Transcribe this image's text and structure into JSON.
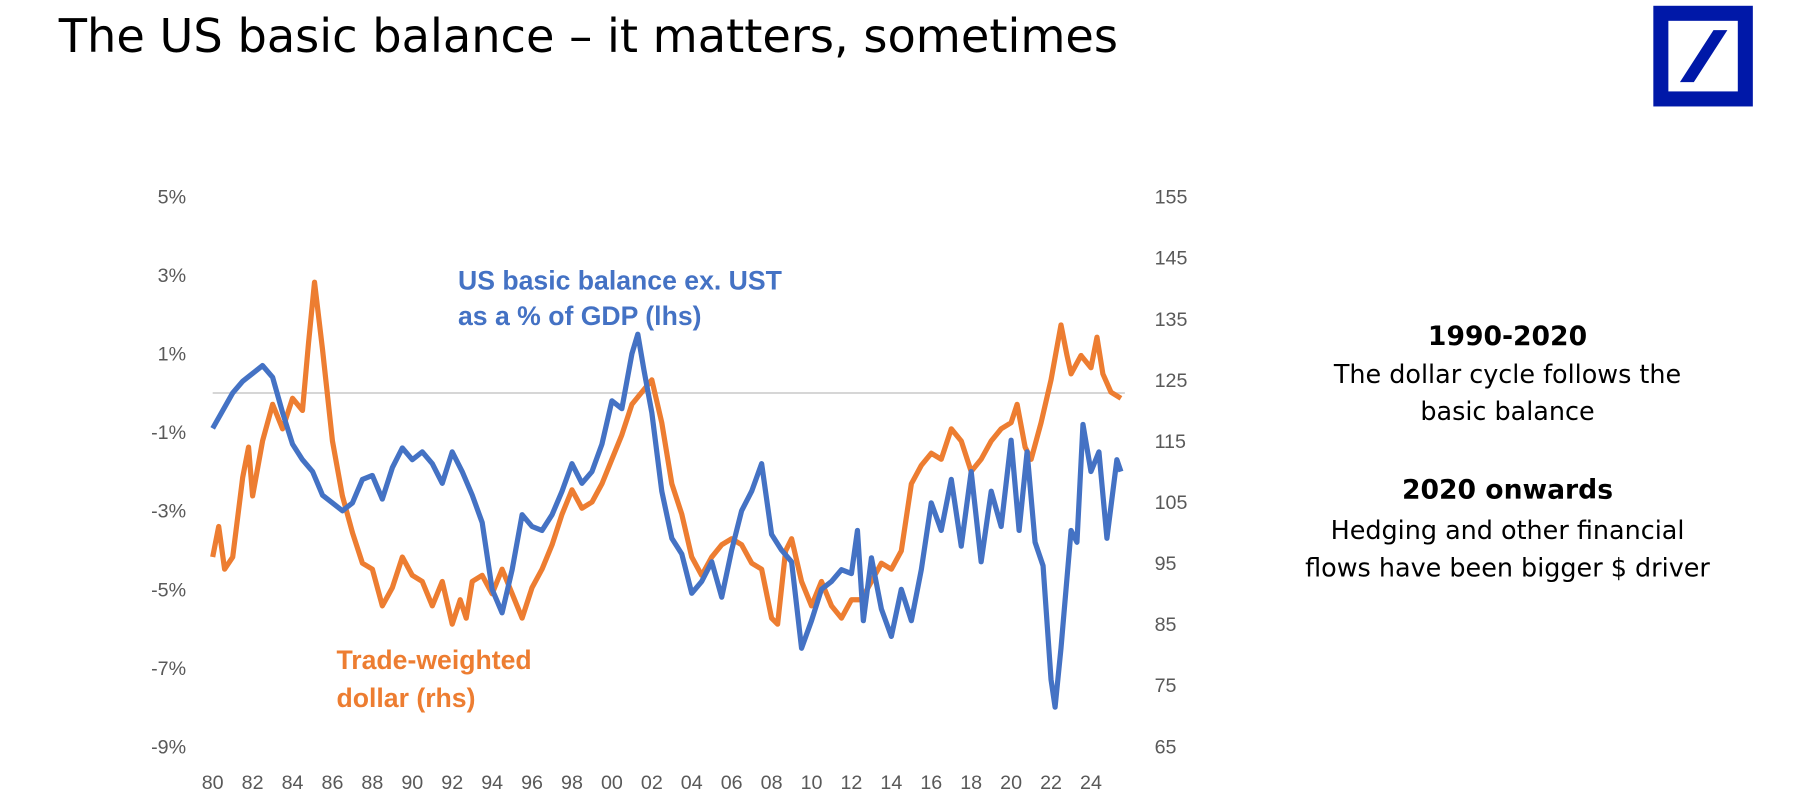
{
  "title": "The US basic balance – it matters, sometimes",
  "logo": {
    "name": "deutsche-bank-logo",
    "color": "#0018A8"
  },
  "annotations": {
    "period1_heading": "1990-2020",
    "period1_line1": "The dollar cycle follows the",
    "period1_line2": "basic balance",
    "period2_heading": "2020 onwards",
    "period2_line1": "Hedging and other financial",
    "period2_line2": "flows have been bigger $ driver"
  },
  "chart_data": {
    "type": "line",
    "title": "",
    "x_ticks": [
      "80",
      "82",
      "84",
      "86",
      "88",
      "90",
      "92",
      "94",
      "96",
      "98",
      "00",
      "02",
      "04",
      "06",
      "08",
      "10",
      "12",
      "14",
      "16",
      "18",
      "20",
      "22",
      "24"
    ],
    "xlim": [
      1980,
      2025.7
    ],
    "y_left": {
      "ticks": [
        "5%",
        "3%",
        "1%",
        "-1%",
        "-3%",
        "-5%",
        "-7%",
        "-9%"
      ],
      "lim": [
        -9,
        5
      ],
      "unit": "%"
    },
    "y_right": {
      "ticks": [
        "155",
        "145",
        "135",
        "125",
        "115",
        "105",
        "95",
        "85",
        "75",
        "65"
      ],
      "lim": [
        65,
        155
      ]
    },
    "zero_line": {
      "value": 0,
      "axis": "left",
      "color": "#d0d0d0"
    },
    "series": [
      {
        "label_line1": "US basic balance ex. UST",
        "label_line2": "as a % of GDP (lhs)",
        "axis": "left",
        "color": "#4472C4",
        "points": [
          [
            1980,
            -0.9
          ],
          [
            1981,
            0.0
          ],
          [
            1981.5,
            0.3
          ],
          [
            1982,
            0.5
          ],
          [
            1982.5,
            0.7
          ],
          [
            1983,
            0.4
          ],
          [
            1983.5,
            -0.5
          ],
          [
            1984,
            -1.3
          ],
          [
            1984.5,
            -1.7
          ],
          [
            1985,
            -2.0
          ],
          [
            1985.5,
            -2.6
          ],
          [
            1986,
            -2.8
          ],
          [
            1986.5,
            -3.0
          ],
          [
            1987,
            -2.8
          ],
          [
            1987.5,
            -2.2
          ],
          [
            1988,
            -2.1
          ],
          [
            1988.5,
            -2.7
          ],
          [
            1989,
            -1.9
          ],
          [
            1989.5,
            -1.4
          ],
          [
            1990,
            -1.7
          ],
          [
            1990.5,
            -1.5
          ],
          [
            1991,
            -1.8
          ],
          [
            1991.5,
            -2.3
          ],
          [
            1992,
            -1.5
          ],
          [
            1992.5,
            -2.0
          ],
          [
            1993,
            -2.6
          ],
          [
            1993.5,
            -3.3
          ],
          [
            1994,
            -5.0
          ],
          [
            1994.5,
            -5.6
          ],
          [
            1995,
            -4.5
          ],
          [
            1995.5,
            -3.1
          ],
          [
            1996,
            -3.4
          ],
          [
            1996.5,
            -3.5
          ],
          [
            1997,
            -3.1
          ],
          [
            1997.5,
            -2.5
          ],
          [
            1998,
            -1.8
          ],
          [
            1998.5,
            -2.3
          ],
          [
            1999,
            -2.0
          ],
          [
            1999.5,
            -1.3
          ],
          [
            2000,
            -0.2
          ],
          [
            2000.5,
            -0.4
          ],
          [
            2001,
            1.0
          ],
          [
            2001.3,
            1.5
          ],
          [
            2001.6,
            0.6
          ],
          [
            2002,
            -0.5
          ],
          [
            2002.5,
            -2.5
          ],
          [
            2003,
            -3.7
          ],
          [
            2003.5,
            -4.1
          ],
          [
            2004,
            -5.1
          ],
          [
            2004.5,
            -4.8
          ],
          [
            2005,
            -4.3
          ],
          [
            2005.5,
            -5.2
          ],
          [
            2006,
            -4.0
          ],
          [
            2006.5,
            -3.0
          ],
          [
            2007,
            -2.5
          ],
          [
            2007.5,
            -1.8
          ],
          [
            2008,
            -3.6
          ],
          [
            2008.5,
            -4.0
          ],
          [
            2009,
            -4.3
          ],
          [
            2009.5,
            -6.5
          ],
          [
            2010,
            -5.8
          ],
          [
            2010.5,
            -5.0
          ],
          [
            2011,
            -4.8
          ],
          [
            2011.5,
            -4.5
          ],
          [
            2012,
            -4.6
          ],
          [
            2012.3,
            -3.5
          ],
          [
            2012.6,
            -5.8
          ],
          [
            2013,
            -4.2
          ],
          [
            2013.5,
            -5.5
          ],
          [
            2014,
            -6.2
          ],
          [
            2014.5,
            -5.0
          ],
          [
            2015,
            -5.8
          ],
          [
            2015.5,
            -4.5
          ],
          [
            2016,
            -2.8
          ],
          [
            2016.5,
            -3.5
          ],
          [
            2017,
            -2.2
          ],
          [
            2017.5,
            -3.9
          ],
          [
            2018,
            -2.0
          ],
          [
            2018.5,
            -4.3
          ],
          [
            2019,
            -2.5
          ],
          [
            2019.5,
            -3.4
          ],
          [
            2020,
            -1.2
          ],
          [
            2020.4,
            -3.5
          ],
          [
            2020.8,
            -1.5
          ],
          [
            2021.2,
            -3.8
          ],
          [
            2021.6,
            -4.4
          ],
          [
            2022,
            -7.3
          ],
          [
            2022.2,
            -8.0
          ],
          [
            2022.5,
            -6.5
          ],
          [
            2023,
            -3.5
          ],
          [
            2023.3,
            -3.8
          ],
          [
            2023.6,
            -0.8
          ],
          [
            2024,
            -2.0
          ],
          [
            2024.4,
            -1.5
          ],
          [
            2024.8,
            -3.7
          ],
          [
            2025.3,
            -1.7
          ],
          [
            2025.5,
            -2.0
          ]
        ]
      },
      {
        "label_line1": "Trade-weighted",
        "label_line2": "dollar (rhs)",
        "axis": "right",
        "color": "#ED7D31",
        "points": [
          [
            1980,
            96
          ],
          [
            1980.3,
            101
          ],
          [
            1980.6,
            94
          ],
          [
            1981,
            96
          ],
          [
            1981.5,
            109
          ],
          [
            1981.8,
            114
          ],
          [
            1982,
            106
          ],
          [
            1982.5,
            115
          ],
          [
            1983,
            121
          ],
          [
            1983.5,
            117
          ],
          [
            1984,
            122
          ],
          [
            1984.5,
            120
          ],
          [
            1984.8,
            131
          ],
          [
            1985.1,
            141
          ],
          [
            1985.5,
            130
          ],
          [
            1986,
            115
          ],
          [
            1986.5,
            106
          ],
          [
            1987,
            100
          ],
          [
            1987.5,
            95
          ],
          [
            1988,
            94
          ],
          [
            1988.5,
            88
          ],
          [
            1989,
            91
          ],
          [
            1989.5,
            96
          ],
          [
            1990,
            93
          ],
          [
            1990.5,
            92
          ],
          [
            1991,
            88
          ],
          [
            1991.5,
            92
          ],
          [
            1992,
            85
          ],
          [
            1992.4,
            89
          ],
          [
            1992.7,
            86
          ],
          [
            1993,
            92
          ],
          [
            1993.5,
            93
          ],
          [
            1994,
            90
          ],
          [
            1994.5,
            94
          ],
          [
            1995,
            90
          ],
          [
            1995.5,
            86
          ],
          [
            1996,
            91
          ],
          [
            1996.5,
            94
          ],
          [
            1997,
            98
          ],
          [
            1997.5,
            103
          ],
          [
            1998,
            107
          ],
          [
            1998.5,
            104
          ],
          [
            1999,
            105
          ],
          [
            1999.5,
            108
          ],
          [
            2000,
            112
          ],
          [
            2000.5,
            116
          ],
          [
            2001,
            121
          ],
          [
            2001.5,
            123
          ],
          [
            2002,
            125
          ],
          [
            2002.5,
            118
          ],
          [
            2003,
            108
          ],
          [
            2003.5,
            103
          ],
          [
            2004,
            96
          ],
          [
            2004.5,
            93
          ],
          [
            2005,
            96
          ],
          [
            2005.5,
            98
          ],
          [
            2006,
            99
          ],
          [
            2006.5,
            98
          ],
          [
            2007,
            95
          ],
          [
            2007.5,
            94
          ],
          [
            2008,
            86
          ],
          [
            2008.3,
            85
          ],
          [
            2008.7,
            97
          ],
          [
            2009,
            99
          ],
          [
            2009.5,
            92
          ],
          [
            2010,
            88
          ],
          [
            2010.5,
            92
          ],
          [
            2011,
            88
          ],
          [
            2011.5,
            86
          ],
          [
            2012,
            89
          ],
          [
            2012.5,
            89
          ],
          [
            2013,
            92
          ],
          [
            2013.5,
            95
          ],
          [
            2014,
            94
          ],
          [
            2014.5,
            97
          ],
          [
            2015,
            108
          ],
          [
            2015.5,
            111
          ],
          [
            2016,
            113
          ],
          [
            2016.5,
            112
          ],
          [
            2017,
            117
          ],
          [
            2017.5,
            115
          ],
          [
            2018,
            110
          ],
          [
            2018.5,
            112
          ],
          [
            2019,
            115
          ],
          [
            2019.5,
            117
          ],
          [
            2020,
            118
          ],
          [
            2020.3,
            121
          ],
          [
            2020.7,
            114
          ],
          [
            2021,
            112
          ],
          [
            2021.5,
            118
          ],
          [
            2022,
            125
          ],
          [
            2022.5,
            134
          ],
          [
            2022.8,
            129
          ],
          [
            2023,
            126
          ],
          [
            2023.5,
            129
          ],
          [
            2024,
            127
          ],
          [
            2024.3,
            132
          ],
          [
            2024.6,
            126
          ],
          [
            2025,
            123
          ],
          [
            2025.5,
            122
          ]
        ]
      }
    ],
    "grid": false
  }
}
